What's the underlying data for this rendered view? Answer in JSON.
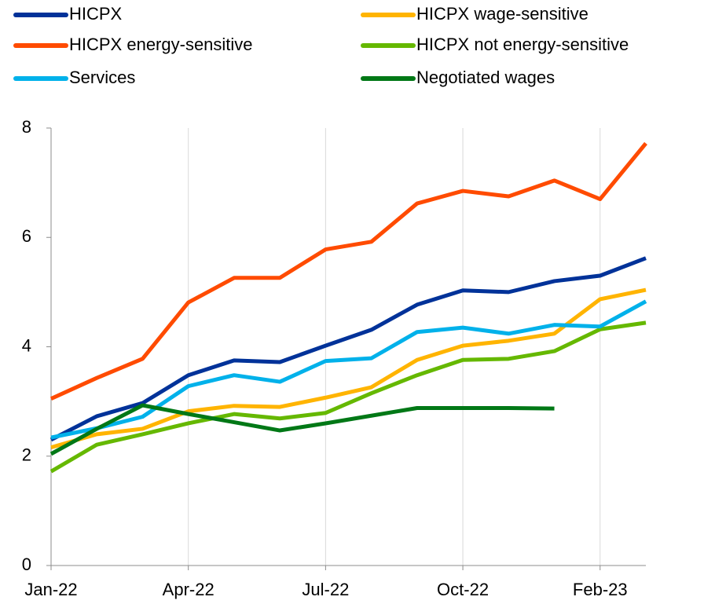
{
  "chart_data": {
    "type": "line",
    "categories": [
      "Jan-22",
      null,
      null,
      "Apr-22",
      null,
      null,
      "Jul-22",
      null,
      null,
      "Oct-22",
      null,
      null,
      "Feb-23",
      null
    ],
    "series": [
      {
        "name": "HICPX",
        "color": "#003299",
        "values": [
          2.3,
          2.73,
          2.97,
          3.48,
          3.75,
          3.72,
          4.02,
          4.31,
          4.77,
          5.03,
          5.0,
          5.2,
          5.3,
          5.62
        ]
      },
      {
        "name": "HICPX wage-sensitive",
        "color": "#ffb400",
        "values": [
          2.16,
          2.4,
          2.5,
          2.82,
          2.92,
          2.9,
          3.07,
          3.26,
          3.76,
          4.02,
          4.11,
          4.24,
          4.87,
          5.04
        ]
      },
      {
        "name": "HICPX energy-sensitive",
        "color": "#ff4b00",
        "values": [
          3.05,
          3.43,
          3.78,
          4.81,
          5.26,
          5.26,
          5.78,
          5.92,
          6.62,
          6.85,
          6.75,
          7.04,
          6.7,
          7.72
        ]
      },
      {
        "name": "HICPX not energy-sensitive",
        "color": "#65b800",
        "values": [
          1.72,
          2.21,
          2.4,
          2.6,
          2.77,
          2.69,
          2.79,
          3.15,
          3.48,
          3.76,
          3.78,
          3.92,
          4.32,
          4.44
        ]
      },
      {
        "name": "Services",
        "color": "#00b1ea",
        "values": [
          2.34,
          2.51,
          2.72,
          3.28,
          3.48,
          3.36,
          3.74,
          3.79,
          4.27,
          4.35,
          4.24,
          4.4,
          4.37,
          4.83
        ]
      },
      {
        "name": "Negotiated wages",
        "color": "#007816",
        "values": [
          2.04,
          2.5,
          2.93,
          2.77,
          2.62,
          2.47,
          2.6,
          2.74,
          2.88,
          2.88,
          2.88,
          2.87,
          null,
          null
        ]
      }
    ],
    "ylim": [
      0,
      8
    ],
    "yticks": [
      0,
      2,
      4,
      6,
      8
    ],
    "grid": true
  }
}
